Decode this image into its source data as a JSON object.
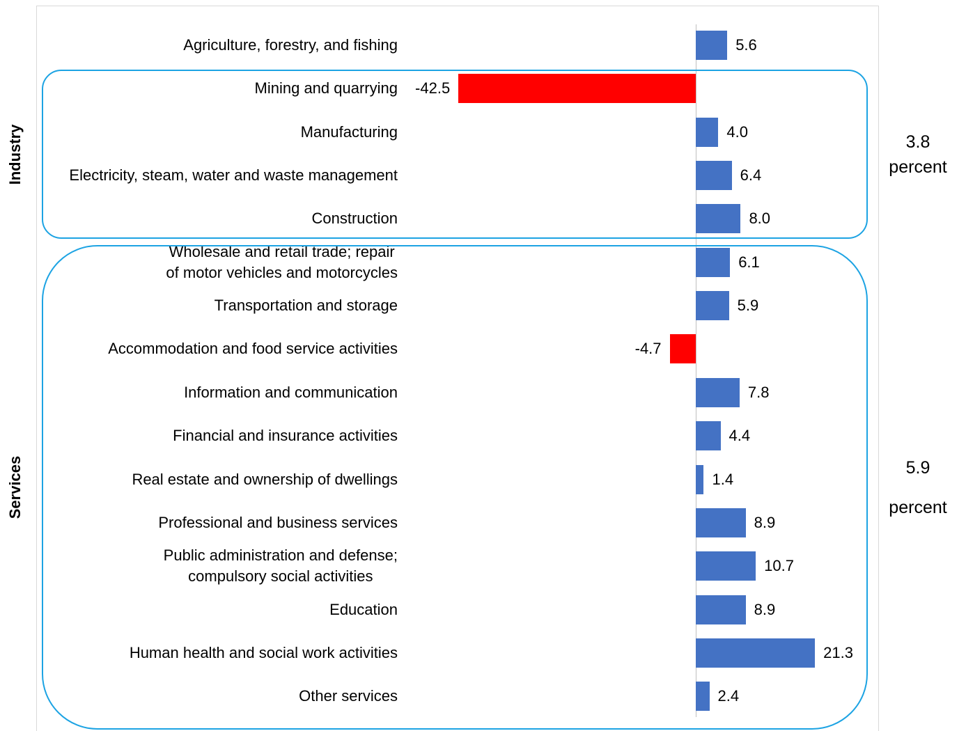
{
  "chart_data": {
    "type": "barh",
    "categories": [
      "Agriculture, forestry, and fishing",
      "Mining and quarrying",
      "Manufacturing",
      "Electricity, steam, water and waste management",
      "Construction",
      "Wholesale and retail trade; repair\nof motor vehicles and motorcycles",
      "Transportation and storage",
      "Accommodation and food service activities",
      "Information and communication",
      "Financial and insurance activities",
      "Real estate and ownership of dwellings",
      "Professional and business services",
      "Public administration and defense;\ncompulsory social activities",
      "Education",
      "Human health and social work activities",
      "Other services"
    ],
    "values": [
      5.6,
      -42.5,
      4.0,
      6.4,
      8.0,
      6.1,
      5.9,
      -4.7,
      7.8,
      4.4,
      1.4,
      8.9,
      10.7,
      8.9,
      21.3,
      2.4
    ],
    "value_labels": [
      "5.6",
      "-42.5",
      "4.0",
      "6.4",
      "8.0",
      "6.1",
      "5.9",
      "-4.7",
      "7.8",
      "4.4",
      "1.4",
      "8.9",
      "10.7",
      "8.9",
      "21.3",
      "2.4"
    ],
    "colors": [
      "#4472c4",
      "#ff0000",
      "#4472c4",
      "#4472c4",
      "#4472c4",
      "#4472c4",
      "#4472c4",
      "#ff0000",
      "#4472c4",
      "#4472c4",
      "#4472c4",
      "#4472c4",
      "#4472c4",
      "#4472c4",
      "#4472c4",
      "#4472c4"
    ],
    "xlim": [
      -50,
      30
    ],
    "groups": [
      {
        "name": "Industry",
        "total": 3.8,
        "unit": "percent"
      },
      {
        "name": "Services",
        "total": 5.9,
        "unit": "percent"
      }
    ]
  }
}
